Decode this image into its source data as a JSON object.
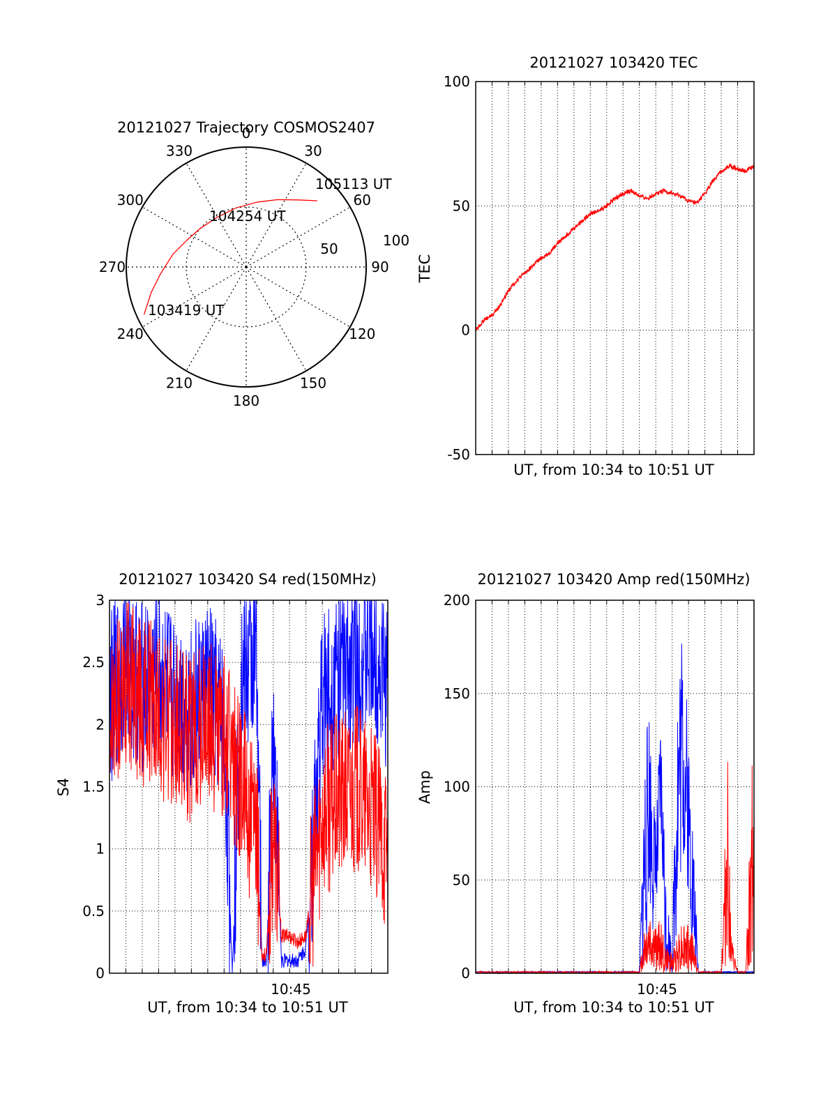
{
  "colors": {
    "red": "#ff0000",
    "blue": "#0000ff",
    "axis": "#000000",
    "grid": "#000000"
  },
  "chart_data": [
    {
      "type": "polar-trajectory",
      "title": "20121027 Trajectory COSMOS2407",
      "azimuth_labels": [
        "0",
        "30",
        "60",
        "90",
        "120",
        "150",
        "180",
        "210",
        "240",
        "270",
        "300",
        "330"
      ],
      "radial_labels": [
        "50",
        "100"
      ],
      "radial_max": 100,
      "grid": true,
      "trajectory": [
        {
          "azimuth": 245,
          "radius": 94
        },
        {
          "azimuth": 255,
          "radius": 82
        },
        {
          "azimuth": 265,
          "radius": 72
        },
        {
          "azimuth": 280,
          "radius": 62
        },
        {
          "azimuth": 295,
          "radius": 54
        },
        {
          "azimuth": 310,
          "radius": 50
        },
        {
          "azimuth": 330,
          "radius": 48
        },
        {
          "azimuth": 350,
          "radius": 50
        },
        {
          "azimuth": 10,
          "radius": 55
        },
        {
          "azimuth": 25,
          "radius": 62
        },
        {
          "azimuth": 38,
          "radius": 71
        },
        {
          "azimuth": 47,
          "radius": 81
        }
      ],
      "annotations": [
        "103419 UT",
        "104254 UT",
        "105113 UT"
      ],
      "series_color": "#ff0000"
    },
    {
      "type": "line",
      "title": "20121027 103420 TEC",
      "ylabel": "TEC",
      "xlabel": "UT, from 10:34 to 10:51 UT",
      "ylim": [
        -50,
        100
      ],
      "yticks": [
        "100",
        "50",
        "0",
        "-50"
      ],
      "xlim_minutes": [
        0,
        17
      ],
      "grid": true,
      "series": [
        {
          "color": "#ff0000",
          "x_minutes": [
            0,
            0.5,
            1,
            1.5,
            2,
            2.5,
            3,
            3.5,
            4,
            4.5,
            5,
            5.5,
            6,
            6.5,
            7,
            7.5,
            8,
            8.5,
            9,
            9.5,
            10,
            10.5,
            11,
            11.5,
            12,
            12.5,
            13,
            13.5,
            14,
            14.5,
            15,
            15.5,
            16,
            16.5,
            17
          ],
          "values": [
            0,
            4,
            6,
            10,
            16,
            20,
            23,
            26,
            29,
            31,
            35,
            38,
            41,
            44,
            47,
            48,
            50,
            53,
            55,
            56,
            54,
            53,
            55,
            56,
            55,
            54,
            52,
            51,
            55,
            60,
            64,
            66,
            65,
            64,
            66
          ]
        }
      ]
    },
    {
      "type": "line",
      "title": "20121027 103420 S4 red(150MHz)",
      "ylabel": "S4",
      "xlabel": "UT, from 10:34 to 10:51 UT",
      "ylim": [
        0,
        3
      ],
      "yticks": [
        "3",
        "2.5",
        "2",
        "1.5",
        "1",
        "0.5",
        "0"
      ],
      "xtick_labels": [
        "10:45"
      ],
      "xlim_minutes": [
        0,
        17
      ],
      "grid": true,
      "series": [
        {
          "color": "#0000ff",
          "x_minutes": [
            0,
            1,
            2,
            3,
            4,
            5,
            6,
            7,
            7.5,
            8,
            9,
            9.3,
            9.6,
            10,
            10.5,
            11,
            11.5,
            12,
            13,
            14,
            15,
            16,
            17
          ],
          "values": [
            2.2,
            2.5,
            2.3,
            2.4,
            2.2,
            2.1,
            2.3,
            2.0,
            0,
            2.3,
            2.6,
            0.1,
            0.1,
            2.0,
            0.1,
            0.1,
            0.1,
            0.2,
            2.2,
            2.4,
            2.5,
            2.6,
            2.3
          ]
        },
        {
          "color": "#ff0000",
          "x_minutes": [
            0,
            1,
            2,
            3,
            4,
            5,
            6,
            7,
            8,
            8.5,
            9,
            9.3,
            9.6,
            10,
            10.5,
            11,
            11.5,
            12,
            13,
            14,
            15,
            16,
            17
          ],
          "values": [
            2.0,
            2.3,
            2.2,
            2.1,
            2.0,
            1.9,
            2.0,
            1.9,
            1.6,
            1.3,
            1.0,
            0.15,
            0.15,
            1.2,
            0.3,
            0.3,
            0.25,
            0.3,
            1.3,
            1.4,
            1.5,
            1.3,
            1.0
          ]
        }
      ]
    },
    {
      "type": "line",
      "title": "20121027 103420 Amp red(150MHz)",
      "ylabel": "Amp",
      "xlabel": "UT, from 10:34 to 10:51 UT",
      "ylim": [
        0,
        200
      ],
      "yticks": [
        "200",
        "150",
        "100",
        "50",
        "0"
      ],
      "xtick_labels": [
        "10:45"
      ],
      "xlim_minutes": [
        0,
        17
      ],
      "grid": true,
      "series": [
        {
          "color": "#0000ff",
          "x_minutes": [
            0,
            2,
            4,
            6,
            8,
            9.5,
            10,
            10.3,
            10.6,
            11,
            11.3,
            11.6,
            12,
            12.3,
            12.6,
            13,
            13.3,
            13.6,
            14,
            15,
            16,
            17
          ],
          "values": [
            1,
            1,
            1,
            1,
            1,
            1,
            1,
            120,
            150,
            80,
            140,
            60,
            10,
            170,
            190,
            130,
            80,
            1,
            1,
            1,
            1,
            1
          ],
          "lows": [
            0,
            0,
            0,
            0,
            0,
            0,
            0,
            0,
            40,
            10,
            70,
            0,
            0,
            20,
            60,
            40,
            0,
            0,
            0,
            0,
            0,
            0
          ]
        },
        {
          "color": "#ff0000",
          "x_minutes": [
            0,
            2,
            4,
            6,
            8,
            9.5,
            10,
            10.3,
            10.6,
            11,
            11.3,
            11.6,
            12,
            12.3,
            12.6,
            13,
            13.3,
            13.6,
            14,
            14.5,
            15,
            15.2,
            15.4,
            15.6,
            16,
            16.5,
            17
          ],
          "values": [
            1,
            1,
            1,
            1,
            1,
            1,
            1,
            25,
            35,
            25,
            30,
            15,
            10,
            20,
            30,
            25,
            20,
            1,
            1,
            1,
            1,
            60,
            125,
            20,
            1,
            1,
            150
          ]
        }
      ]
    }
  ]
}
